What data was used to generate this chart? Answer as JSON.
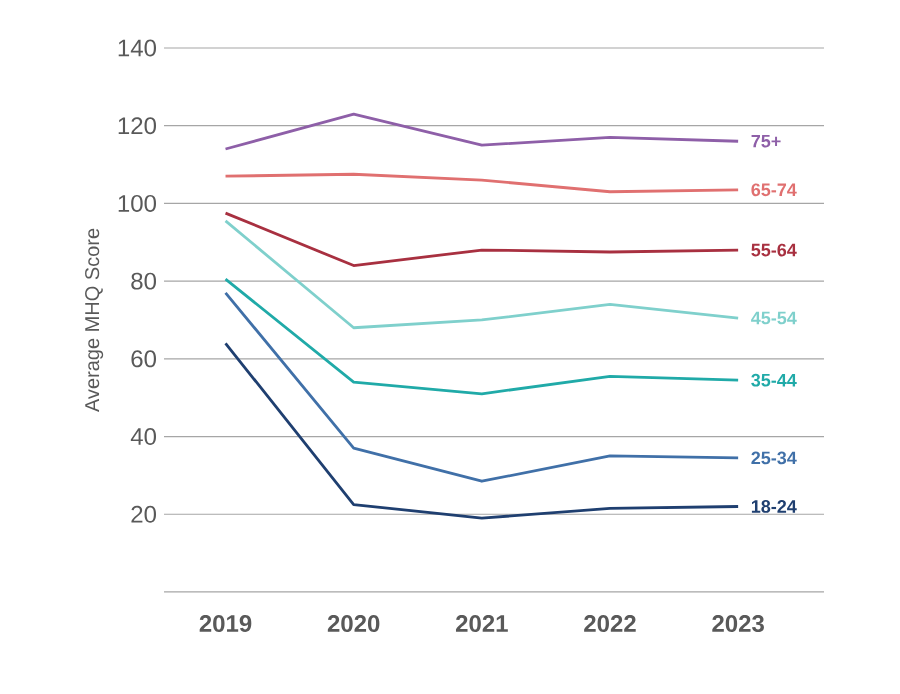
{
  "chart_data": {
    "type": "line",
    "ylabel": "Average MHQ Score",
    "categories": [
      "2019",
      "2020",
      "2021",
      "2022",
      "2023"
    ],
    "ylim": [
      0,
      140
    ],
    "yticks": [
      {
        "value": 0,
        "label": null
      },
      20,
      40,
      60,
      80,
      100,
      120,
      140
    ],
    "grid": "y",
    "marker": "none",
    "series": [
      {
        "name": "75+",
        "color": "#8e5fa8",
        "values": [
          114,
          123,
          115,
          117,
          116
        ]
      },
      {
        "name": "65-74",
        "color": "#e07070",
        "values": [
          107,
          107.5,
          106,
          103,
          103.5
        ]
      },
      {
        "name": "55-64",
        "color": "#a83040",
        "values": [
          97.5,
          84,
          88,
          87.5,
          88
        ]
      },
      {
        "name": "45-54",
        "color": "#7fd0cc",
        "values": [
          95.5,
          68,
          70,
          74,
          70.5
        ]
      },
      {
        "name": "35-44",
        "color": "#20aaa8",
        "values": [
          80.5,
          54,
          51,
          55.5,
          54.5
        ]
      },
      {
        "name": "25-34",
        "color": "#4070a8",
        "values": [
          77,
          37,
          28.5,
          35,
          34.5
        ]
      },
      {
        "name": "18-24",
        "color": "#1f3f70",
        "values": [
          64,
          22.5,
          19,
          21.5,
          22
        ]
      }
    ]
  }
}
